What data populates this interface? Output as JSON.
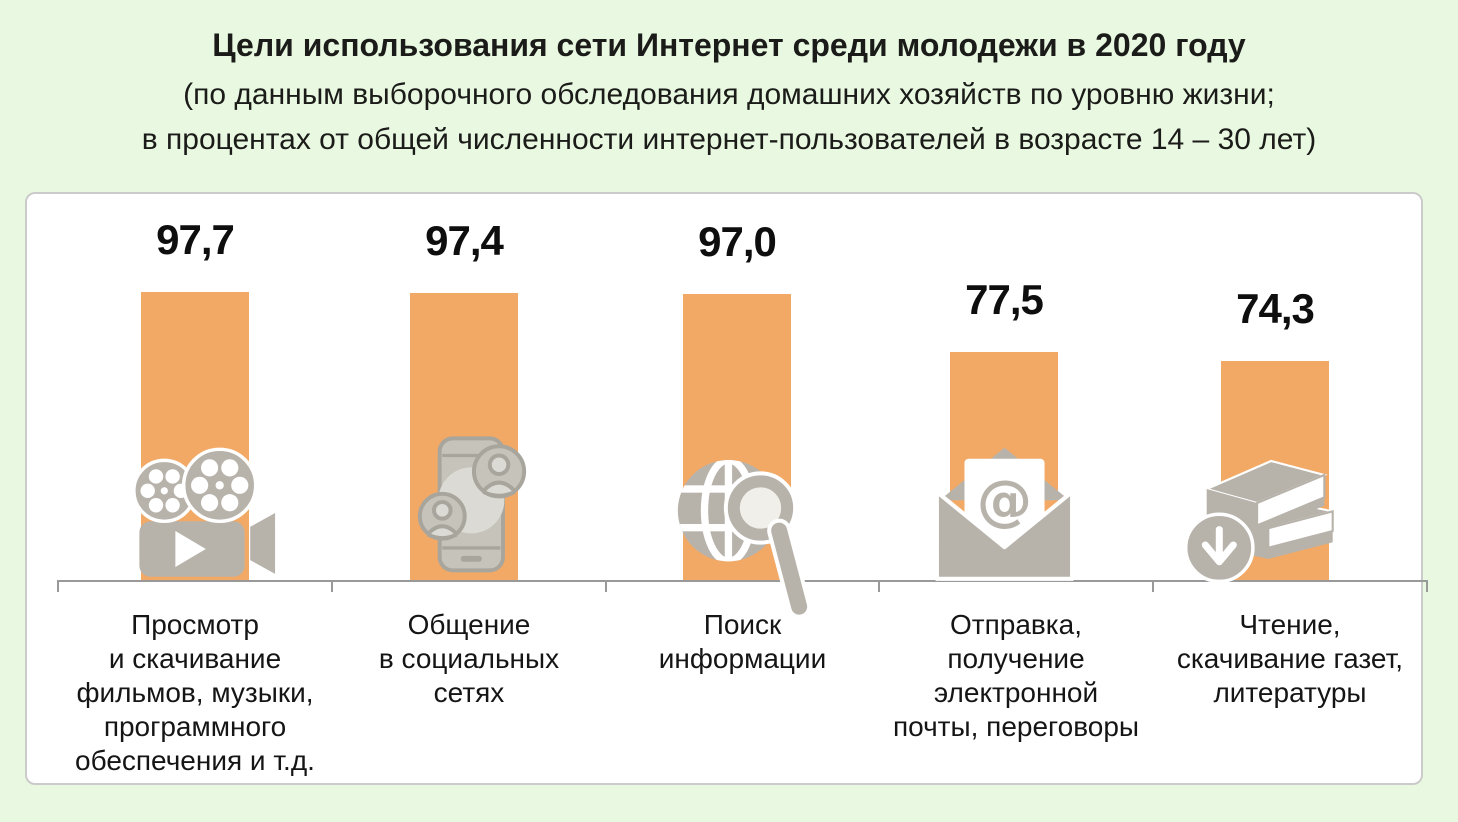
{
  "page": {
    "background_color": "#E9F9E1",
    "panel_color": "#FFFFFF",
    "panel_border_color": "#CBCBCB"
  },
  "header": {
    "title": "Цели использования сети Интернет среди молодежи в 2020 году",
    "subtitle_line1": "(по данным выборочного обследования домашних хозяйств по уровню жизни;",
    "subtitle_line2": "в процентах от общей численности интернет-пользователей в возрасте 14 – 30 лет)"
  },
  "chart_data": {
    "type": "bar",
    "title": "Цели использования сети Интернет среди молодежи в 2020 году",
    "xlabel": "",
    "ylabel": "проценты",
    "ylim": [
      0,
      100
    ],
    "grid": false,
    "legend": false,
    "decimal_separator": ",",
    "bar_color": "#F2A966",
    "icon_color": "#B7B3AB",
    "axis_color": "#999999",
    "value_color": "#0E0E0E",
    "categories": [
      "Просмотр\nи скачивание\nфильмов, музыки,\nпрограммного\nобеспечения и т.д.",
      "Общение\nв социальных\nсетях",
      "Поиск\nинформации",
      "Отправка,\nполучение\nэлектронной\nпочты, переговоры",
      "Чтение,\nскачивание газет,\nлитературы"
    ],
    "values": [
      97.7,
      97.4,
      97.0,
      77.5,
      74.3
    ],
    "value_labels": [
      "97,7",
      "97,4",
      "97,0",
      "77,5",
      "74,3"
    ],
    "icons": [
      "film-projector-icon",
      "smartphone-social-chat-icon",
      "globe-search-icon",
      "email-at-envelope-icon",
      "books-download-icon"
    ]
  }
}
